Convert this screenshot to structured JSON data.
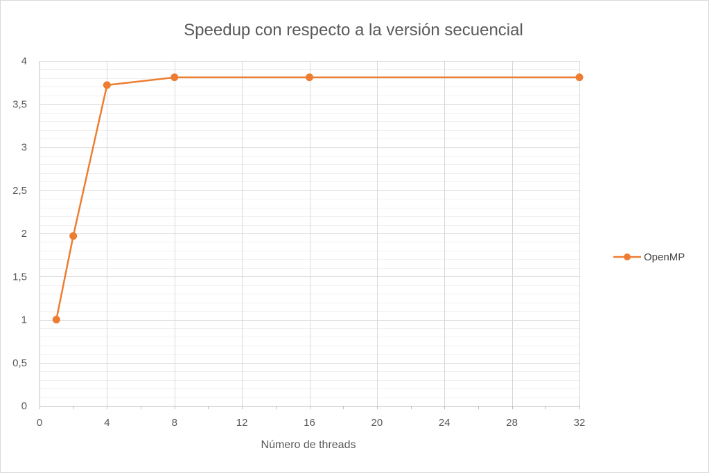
{
  "chart_data": {
    "type": "scatter",
    "title": "Speedup con respecto a la versión secuencial",
    "xlabel": "Número de threads",
    "ylabel": "",
    "xlim": [
      0,
      32
    ],
    "ylim": [
      0,
      4
    ],
    "x_ticks": [
      0,
      4,
      8,
      12,
      16,
      20,
      24,
      28,
      32
    ],
    "x_minor_ticks": [
      2,
      6,
      10,
      14,
      18,
      22,
      26,
      30
    ],
    "y_ticks": [
      0,
      0.5,
      1,
      1.5,
      2,
      2.5,
      3,
      3.5,
      4
    ],
    "x_tick_labels": [
      "0",
      "4",
      "8",
      "12",
      "16",
      "20",
      "24",
      "28",
      "32"
    ],
    "y_tick_labels": [
      "0",
      "0,5",
      "1",
      "1,5",
      "2",
      "2,5",
      "3",
      "3,5",
      "4"
    ],
    "grid": "major vertical and horizontal, minor horizontal",
    "legend_position": "right",
    "series": [
      {
        "name": "OpenMP",
        "color": "#ED7D31",
        "marker": "circle",
        "line": true,
        "x": [
          1,
          2,
          4,
          8,
          16,
          32
        ],
        "y": [
          1.0,
          1.97,
          3.72,
          3.81,
          3.81,
          3.81
        ]
      }
    ]
  }
}
